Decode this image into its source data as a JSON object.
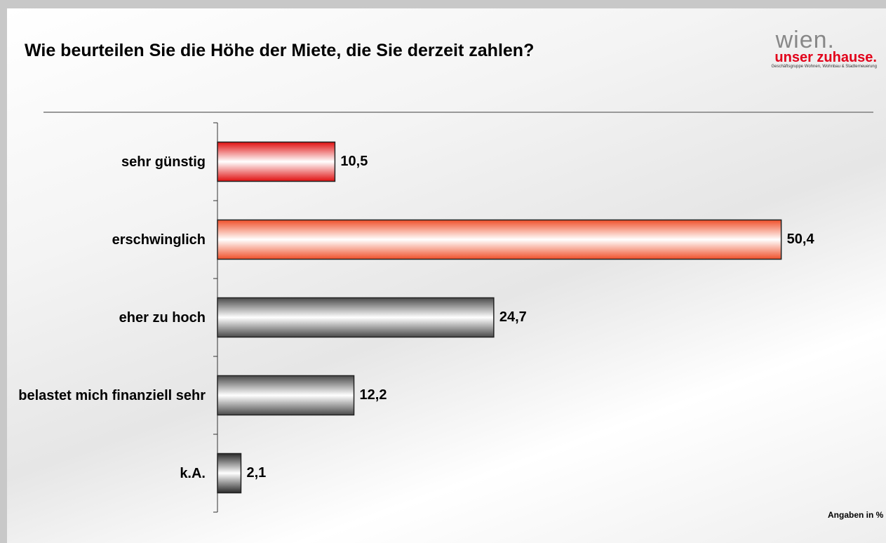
{
  "chart_data": {
    "type": "bar",
    "orientation": "horizontal",
    "title": "Wie beurteilen Sie die Höhe der Miete, die Sie derzeit zahlen?",
    "logo": {
      "brand": "wien.",
      "tagline": "unser zuhause.",
      "subline": "Geschäftsgruppe Wohnen, Wohnbau & Stadterneuerung"
    },
    "note": "Angaben in %",
    "categories": [
      "sehr günstig",
      "erschwinglich",
      "eher zu hoch",
      "belastet mich finanziell sehr",
      "k.A."
    ],
    "values": [
      10.5,
      50.4,
      24.7,
      12.2,
      2.1
    ],
    "value_labels": [
      "10,5",
      "50,4",
      "24,7",
      "12,2",
      "2,1"
    ],
    "colors": [
      "#e01010",
      "#f0502a",
      "#4a4a4a",
      "#4a4a4a",
      "#2a2a2a"
    ],
    "xlim": [
      0,
      55
    ]
  }
}
